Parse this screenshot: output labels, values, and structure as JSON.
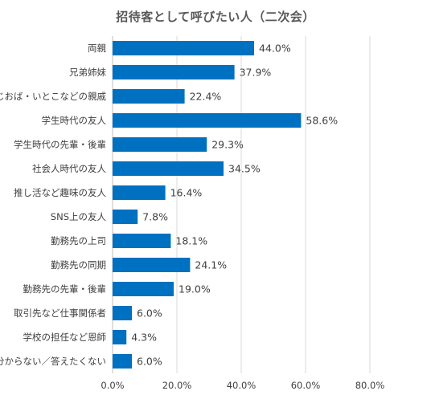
{
  "chart_data": {
    "type": "bar",
    "orientation": "horizontal",
    "title": "招待客として呼びたい人（二次会）",
    "categories": [
      "両親",
      "兄弟姉妹",
      "おじおば・いとこなどの親戚",
      "学生時代の友人",
      "学生時代の先輩・後輩",
      "社会人時代の友人",
      "推し活など趣味の友人",
      "SNS上の友人",
      "勤務先の上司",
      "勤務先の同期",
      "勤務先の先輩・後輩",
      "取引先など仕事関係者",
      "学校の担任など恩師",
      "分からない／答えたくない"
    ],
    "values": [
      44.0,
      37.9,
      22.4,
      58.6,
      29.3,
      34.5,
      16.4,
      7.8,
      18.1,
      24.1,
      19.0,
      6.0,
      4.3,
      6.0
    ],
    "value_labels": [
      "44.0%",
      "37.9%",
      "22.4%",
      "58.6%",
      "29.3%",
      "34.5%",
      "16.4%",
      "7.8%",
      "18.1%",
      "24.1%",
      "19.0%",
      "6.0%",
      "4.3%",
      "6.0%"
    ],
    "xlim": [
      0,
      80
    ],
    "xticks": [
      "0.0%",
      "20.0%",
      "40.0%",
      "60.0%",
      "80.0%"
    ],
    "grid": true,
    "bar_color": "#0070C0",
    "grid_color": "#D9D9D9"
  }
}
